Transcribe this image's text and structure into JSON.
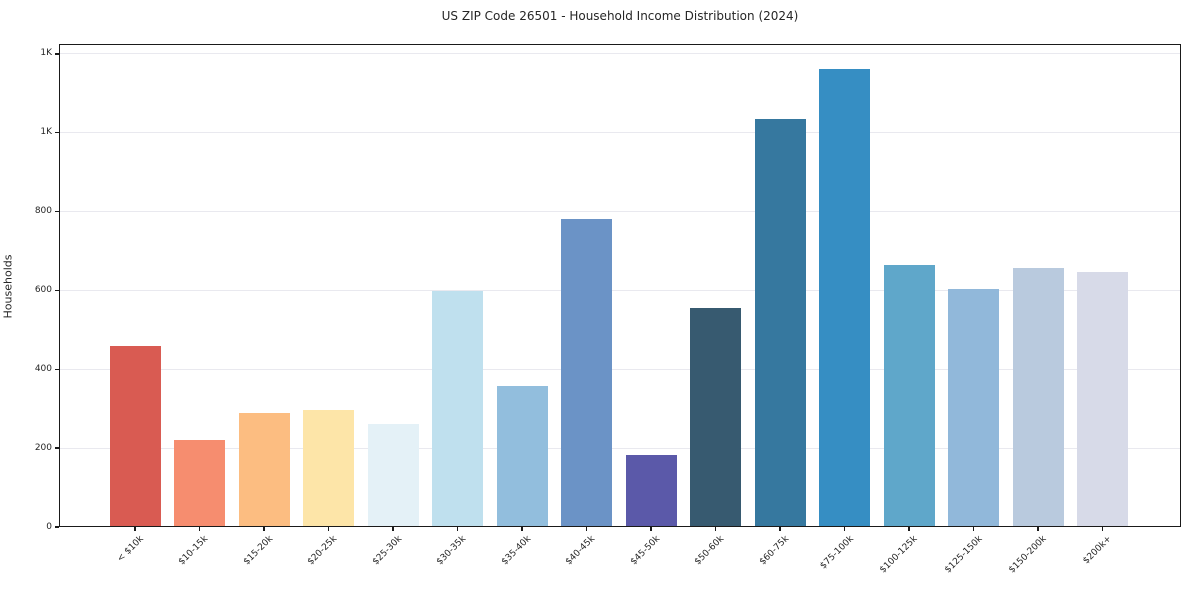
{
  "chart_data": {
    "type": "bar",
    "title": "US ZIP Code 26501 - Household Income Distribution (2024)",
    "xlabel": "",
    "ylabel": "Households",
    "ylim": [
      0,
      1225
    ],
    "grid": true,
    "legend": false,
    "x_tick_rotation": 45,
    "categories": [
      "< $10k",
      "$10-15k",
      "$15-20k",
      "$20-25k",
      "$25-30k",
      "$30-35k",
      "$35-40k",
      "$40-45k",
      "$45-50k",
      "$50-60k",
      "$60-75k",
      "$75-100k",
      "$100-125k",
      "$125-150k",
      "$150-200k",
      "$200k+"
    ],
    "values": [
      460,
      220,
      290,
      296,
      262,
      598,
      358,
      780,
      183,
      555,
      1035,
      1162,
      664,
      604,
      658,
      648
    ],
    "bar_colors": [
      "#d95b52",
      "#f68d6f",
      "#fcbd81",
      "#fde5a8",
      "#e4f1f7",
      "#bfe0ee",
      "#92bedd",
      "#6b93c6",
      "#5b59a9",
      "#375a70",
      "#36789f",
      "#368ec3",
      "#5fa7ca",
      "#91b8da",
      "#b9cade",
      "#d7dae8"
    ],
    "yticks": [
      {
        "value": 0,
        "label": "0"
      },
      {
        "value": 200,
        "label": "200"
      },
      {
        "value": 400,
        "label": "400"
      },
      {
        "value": 600,
        "label": "600"
      },
      {
        "value": 800,
        "label": "800"
      },
      {
        "value": 1000,
        "label": "1K"
      },
      {
        "value": 1200,
        "label": "1K"
      }
    ]
  }
}
